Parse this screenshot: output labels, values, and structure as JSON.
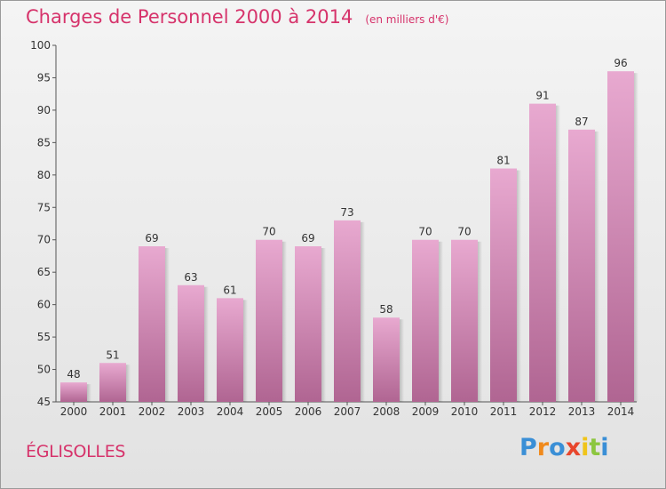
{
  "title": "Charges de Personnel 2000 à 2014",
  "subtitle": "(en milliers d'€)",
  "commune": "ÉGLISOLLES",
  "logo": {
    "letters": [
      "P",
      "r",
      "o",
      "x",
      "i",
      "t",
      "i"
    ],
    "colors": [
      "#3a8fd6",
      "#f08a1c",
      "#3a8fd6",
      "#e8462c",
      "#f0c419",
      "#8cc63f",
      "#3a8fd6"
    ]
  },
  "colors": {
    "bar_top": "#e8a9d0",
    "bar_bottom": "#b06592",
    "title": "#d6336b"
  },
  "chart_data": {
    "type": "bar",
    "categories": [
      "2000",
      "2001",
      "2002",
      "2003",
      "2004",
      "2005",
      "2006",
      "2007",
      "2008",
      "2009",
      "2010",
      "2011",
      "2012",
      "2013",
      "2014"
    ],
    "values": [
      48,
      51,
      69,
      63,
      61,
      70,
      69,
      73,
      58,
      70,
      70,
      81,
      91,
      87,
      96
    ],
    "ylim": [
      45,
      100
    ],
    "yticks": [
      45,
      50,
      55,
      60,
      65,
      70,
      75,
      80,
      85,
      90,
      95,
      100
    ],
    "grid": false,
    "data_labels": true
  }
}
